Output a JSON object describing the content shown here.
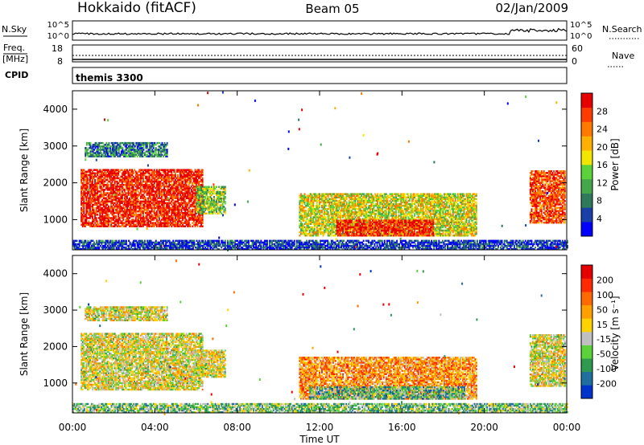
{
  "header": {
    "station": "Hokkaido (fitACF)",
    "beam": "Beam 05",
    "date": "02/Jan/2009"
  },
  "strips": {
    "nsky_label": "N.Sky",
    "nsky_ticks": [
      "10^5",
      "10^0"
    ],
    "nsearch_label": "N.Search",
    "nsearch_ticks": [
      "10^5",
      "10^0"
    ],
    "freq_label": "Freq.",
    "freq_unit": "[MHz]",
    "freq_ticks": [
      "18",
      "8"
    ],
    "nave_label": "Nave",
    "nave_ticks": [
      "60",
      "0"
    ],
    "cpid_label": "CPID",
    "cpid_value": "themis 3300"
  },
  "chart_data": [
    {
      "type": "heatmap",
      "parameter": "power",
      "ylabel": "Slant Range [km]",
      "ylim": [
        180,
        4500
      ],
      "yticks": [
        "4000",
        "3000",
        "2000",
        "1000"
      ],
      "xlim_hours": [
        0,
        24
      ],
      "colorbar": {
        "label": "Power [dB]",
        "ticks": [
          "28",
          "24",
          "20",
          "16",
          "12",
          "8",
          "4"
        ],
        "colors": [
          "#0000ff",
          "#1a40a8",
          "#2e7a5a",
          "#44a84a",
          "#5cd23a",
          "#f2e600",
          "#ffb000",
          "#ff7800",
          "#ff3c00",
          "#e60000"
        ]
      },
      "echo_regions": [
        {
          "t_start": 0.4,
          "t_end": 6.3,
          "r_min": 800,
          "r_max": 2350,
          "level": 0.92
        },
        {
          "t_start": 6.0,
          "t_end": 7.4,
          "r_min": 1150,
          "r_max": 1900,
          "level": 0.45
        },
        {
          "t_start": 0.6,
          "t_end": 4.6,
          "r_min": 2700,
          "r_max": 3100,
          "level": 0.25
        },
        {
          "t_start": 11.0,
          "t_end": 19.6,
          "r_min": 550,
          "r_max": 1700,
          "level": 0.55
        },
        {
          "t_start": 12.8,
          "t_end": 17.5,
          "r_min": 550,
          "r_max": 1000,
          "level": 0.9
        },
        {
          "t_start": 22.2,
          "t_end": 23.9,
          "r_min": 900,
          "r_max": 2300,
          "level": 0.85
        },
        {
          "t_start": 0.0,
          "t_end": 24.0,
          "r_min": 180,
          "r_max": 420,
          "level": 0.12
        }
      ]
    },
    {
      "type": "heatmap",
      "parameter": "velocity",
      "ylabel": "Slant Range [km]",
      "ylim": [
        180,
        4500
      ],
      "yticks": [
        "4000",
        "3000",
        "2000",
        "1000"
      ],
      "xlim_hours": [
        0,
        24
      ],
      "xlabel": "Time UT",
      "xticks": [
        "00:00",
        "04:00",
        "08:00",
        "12:00",
        "16:00",
        "20:00",
        "00:00"
      ],
      "colorbar": {
        "label": "Velocity [m s⁻¹]",
        "ticks": [
          "200",
          "100",
          "50",
          "15",
          "-15",
          "-50",
          "-100",
          "-200"
        ],
        "colors": [
          "#0033cc",
          "#1f6f9f",
          "#2e9a50",
          "#5cd23a",
          "#c0c0c0",
          "#ffd200",
          "#ffa000",
          "#ff6a00",
          "#ff2a00",
          "#e60000"
        ]
      },
      "echo_regions": [
        {
          "t_start": 0.4,
          "t_end": 6.3,
          "r_min": 800,
          "r_max": 2350,
          "level": 0.5
        },
        {
          "t_start": 6.0,
          "t_end": 7.4,
          "r_min": 1150,
          "r_max": 1900,
          "level": 0.5
        },
        {
          "t_start": 0.6,
          "t_end": 4.6,
          "r_min": 2700,
          "r_max": 3100,
          "level": 0.5
        },
        {
          "t_start": 11.0,
          "t_end": 19.6,
          "r_min": 550,
          "r_max": 1700,
          "level": 0.68
        },
        {
          "t_start": 11.5,
          "t_end": 19.0,
          "r_min": 550,
          "r_max": 900,
          "level": 0.3
        },
        {
          "t_start": 22.2,
          "t_end": 23.9,
          "r_min": 900,
          "r_max": 2300,
          "level": 0.5
        },
        {
          "t_start": 0.0,
          "t_end": 24.0,
          "r_min": 180,
          "r_max": 420,
          "level": 0.35
        }
      ]
    }
  ]
}
